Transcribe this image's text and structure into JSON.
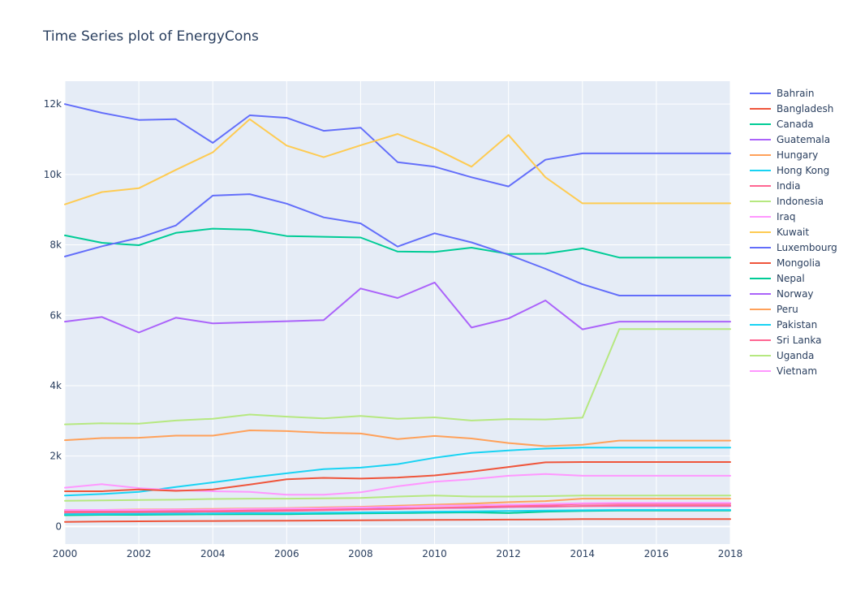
{
  "chart_data": {
    "type": "line",
    "title": "Time Series plot of EnergyCons",
    "xlabel": "",
    "ylabel": "",
    "xlim": [
      2000,
      2018
    ],
    "ylim": [
      -500,
      12650
    ],
    "x_ticks": [
      2000,
      2002,
      2004,
      2006,
      2008,
      2010,
      2012,
      2014,
      2016,
      2018
    ],
    "y_ticks": [
      0,
      2000,
      4000,
      6000,
      8000,
      10000,
      12000
    ],
    "y_tick_labels": [
      "0",
      "2k",
      "4k",
      "6k",
      "8k",
      "10k",
      "12k"
    ],
    "grid": true,
    "legend_position": "right",
    "x": [
      2000,
      2001,
      2002,
      2003,
      2004,
      2005,
      2006,
      2007,
      2008,
      2009,
      2010,
      2011,
      2012,
      2013,
      2014,
      2015,
      2016,
      2017,
      2018
    ],
    "series": [
      {
        "name": "Bahrain",
        "color": "#636efa",
        "values": [
          12000,
          11750,
          11550,
          11570,
          10900,
          11680,
          11610,
          11240,
          11330,
          10350,
          10220,
          9920,
          9660,
          10420,
          10600,
          10600,
          10600,
          10600,
          10600
        ]
      },
      {
        "name": "Bangladesh",
        "color": "#ef553b",
        "values": [
          130,
          140,
          145,
          150,
          155,
          160,
          165,
          170,
          175,
          180,
          185,
          190,
          195,
          200,
          210,
          210,
          210,
          210,
          210
        ]
      },
      {
        "name": "Canada",
        "color": "#00cc96",
        "values": [
          8270,
          8060,
          7990,
          8340,
          8460,
          8430,
          8250,
          8230,
          8210,
          7810,
          7800,
          7920,
          7740,
          7750,
          7900,
          7640,
          7640,
          7640,
          7640
        ]
      },
      {
        "name": "Guatemala",
        "color": "#ab63fa",
        "values": [
          420,
          430,
          440,
          450,
          460,
          470,
          480,
          490,
          500,
          510,
          520,
          530,
          550,
          560,
          580,
          580,
          580,
          580,
          580
        ]
      },
      {
        "name": "Hungary",
        "color": "#ffa15a",
        "values": [
          2450,
          2510,
          2520,
          2580,
          2580,
          2730,
          2710,
          2660,
          2640,
          2480,
          2570,
          2500,
          2370,
          2280,
          2320,
          2440,
          2440,
          2440,
          2440
        ]
      },
      {
        "name": "Hong Kong",
        "color": "#19d3f3",
        "values": [
          880,
          920,
          980,
          1120,
          1250,
          1390,
          1510,
          1630,
          1670,
          1770,
          1950,
          2090,
          2160,
          2210,
          2240,
          2240,
          2240,
          2240,
          2240
        ]
      },
      {
        "name": "India",
        "color": "#ff6692",
        "values": [
          380,
          390,
          400,
          410,
          420,
          430,
          440,
          460,
          480,
          500,
          530,
          550,
          580,
          610,
          640,
          640,
          640,
          640,
          640
        ]
      },
      {
        "name": "Indonesia",
        "color": "#b6e880",
        "values": [
          730,
          740,
          750,
          760,
          780,
          790,
          790,
          800,
          810,
          850,
          880,
          850,
          850,
          860,
          880,
          880,
          880,
          880,
          880
        ]
      },
      {
        "name": "Iraq",
        "color": "#ff97ff",
        "values": [
          1100,
          1200,
          1090,
          1030,
          1000,
          980,
          900,
          900,
          970,
          1140,
          1270,
          1340,
          1440,
          1490,
          1440,
          1440,
          1440,
          1440,
          1440
        ]
      },
      {
        "name": "Kuwait",
        "color": "#fecb52",
        "values": [
          9150,
          9500,
          9610,
          10130,
          10630,
          11570,
          10820,
          10490,
          10830,
          11150,
          10740,
          10220,
          11120,
          9920,
          9180,
          9180,
          9180,
          9180,
          9180
        ]
      },
      {
        "name": "Luxembourg",
        "color": "#636efa",
        "values": [
          7670,
          7960,
          8200,
          8550,
          9400,
          9440,
          9170,
          8780,
          8610,
          7950,
          8330,
          8070,
          7720,
          7320,
          6880,
          6560,
          6560,
          6560,
          6560
        ]
      },
      {
        "name": "Mongolia",
        "color": "#ef553b",
        "values": [
          1000,
          1000,
          1050,
          1010,
          1050,
          1190,
          1340,
          1380,
          1360,
          1390,
          1450,
          1560,
          1690,
          1820,
          1830,
          1830,
          1830,
          1830,
          1830
        ]
      },
      {
        "name": "Nepal",
        "color": "#00cc96",
        "values": [
          320,
          330,
          330,
          340,
          345,
          350,
          350,
          360,
          370,
          380,
          390,
          400,
          380,
          420,
          440,
          450,
          450,
          450,
          450
        ]
      },
      {
        "name": "Norway",
        "color": "#ab63fa",
        "values": [
          5820,
          5950,
          5510,
          5930,
          5770,
          5800,
          5830,
          5860,
          6760,
          6490,
          6930,
          5650,
          5910,
          6420,
          5600,
          5820,
          5820,
          5820,
          5820
        ]
      },
      {
        "name": "Peru",
        "color": "#ffa15a",
        "values": [
          460,
          470,
          480,
          490,
          500,
          510,
          520,
          540,
          560,
          590,
          620,
          650,
          690,
          720,
          790,
          790,
          790,
          790,
          790
        ]
      },
      {
        "name": "Pakistan",
        "color": "#19d3f3",
        "values": [
          350,
          355,
          360,
          365,
          370,
          380,
          380,
          390,
          400,
          410,
          420,
          430,
          440,
          450,
          460,
          470,
          470,
          470,
          470
        ]
      },
      {
        "name": "Sri Lanka",
        "color": "#ff6692",
        "values": [
          420,
          430,
          430,
          440,
          450,
          460,
          470,
          480,
          490,
          500,
          520,
          540,
          560,
          570,
          580,
          590,
          590,
          590,
          590
        ]
      },
      {
        "name": "Uganda",
        "color": "#b6e880",
        "values": [
          2900,
          2930,
          2920,
          3010,
          3060,
          3180,
          3120,
          3070,
          3140,
          3060,
          3100,
          3010,
          3050,
          3040,
          3090,
          5610,
          5610,
          5610,
          5610
        ]
      },
      {
        "name": "Vietnam",
        "color": "#ff97ff",
        "values": [
          470,
          470,
          470,
          480,
          480,
          500,
          510,
          520,
          540,
          560,
          590,
          600,
          620,
          640,
          660,
          670,
          670,
          670,
          670
        ]
      }
    ]
  }
}
